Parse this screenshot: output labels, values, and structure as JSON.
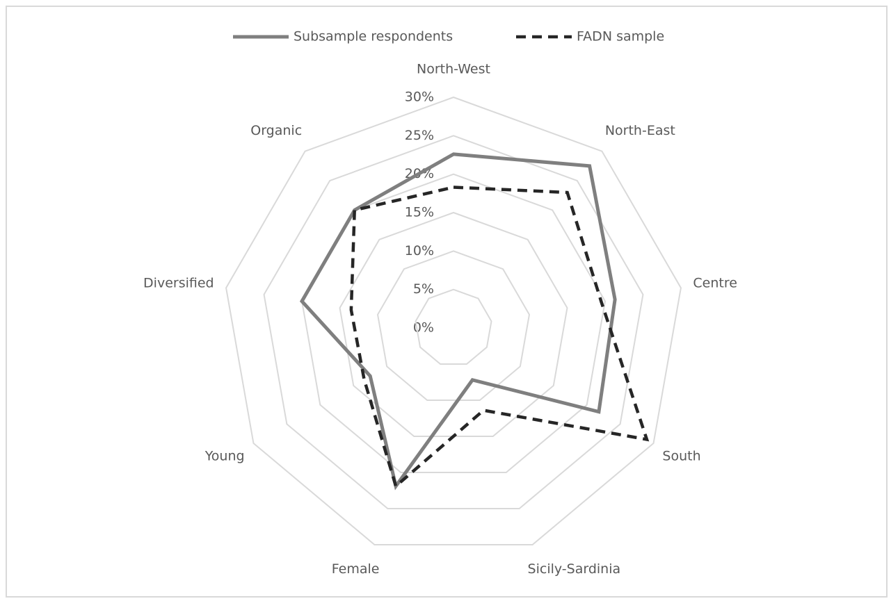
{
  "chart_data": {
    "type": "radar",
    "categories": [
      "North-West",
      "North-East",
      "Centre",
      "South",
      "Sicily-Sardinia",
      "Female",
      "Young",
      "Diversified",
      "Organic"
    ],
    "series": [
      {
        "name": "Subsample respondents",
        "color": "#7f7f7f",
        "values": [
          22.6,
          27.5,
          21.3,
          21.8,
          7.2,
          21.9,
          12.5,
          20,
          20
        ]
      },
      {
        "name": "FADN sample",
        "color": "#262626",
        "values": [
          18.3,
          23,
          19.5,
          29,
          11.4,
          21.9,
          13.4,
          13.5,
          20
        ]
      }
    ],
    "ylim": [
      0,
      30
    ],
    "yticks": [
      {
        "value": 0,
        "label": "0%"
      },
      {
        "value": 5,
        "label": "5%"
      },
      {
        "value": 10,
        "label": "10%"
      },
      {
        "value": 15,
        "label": "15%"
      },
      {
        "value": 20,
        "label": "20%"
      },
      {
        "value": 25,
        "label": "25%"
      },
      {
        "value": 30,
        "label": "30%"
      }
    ],
    "grid": true,
    "legend": "top"
  }
}
